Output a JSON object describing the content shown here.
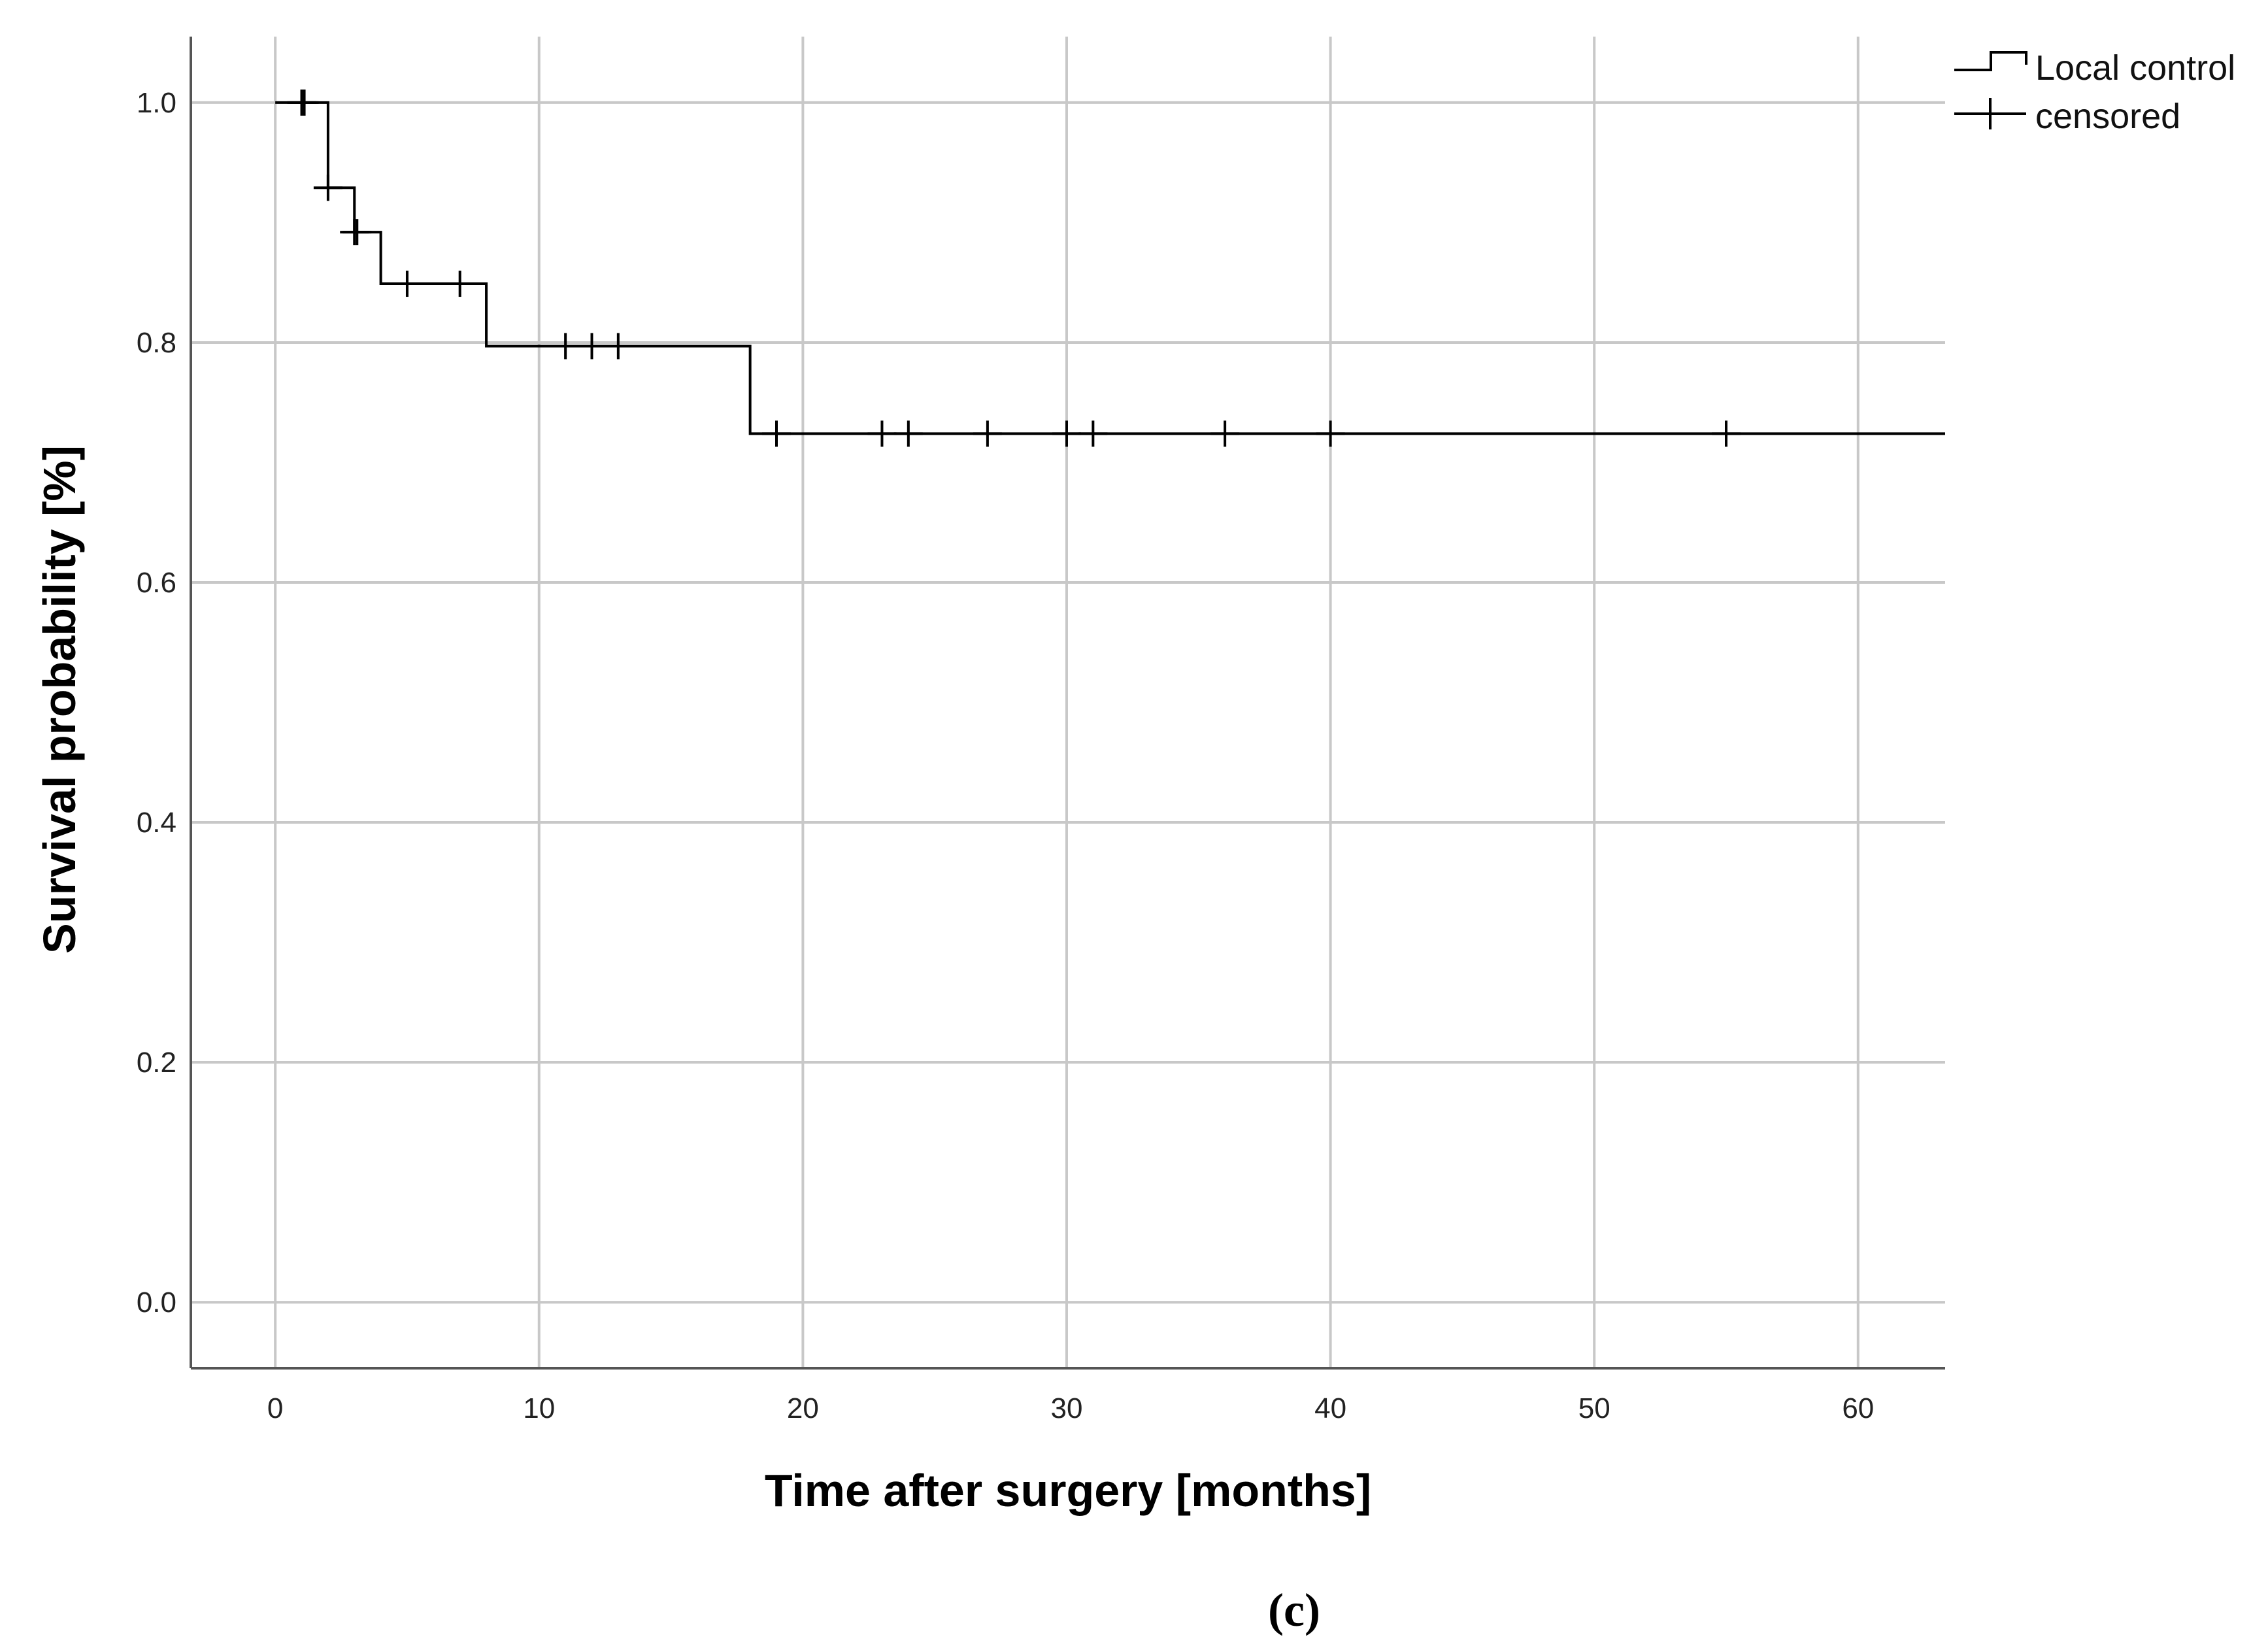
{
  "chart_data": {
    "type": "line",
    "subtype": "kaplan-meier-step",
    "xlabel": "Time after surgery [months]",
    "ylabel": "Survival probability [%]",
    "xlim": [
      -3.2,
      63.3
    ],
    "ylim": [
      -0.055,
      1.055
    ],
    "xticks": [
      0,
      10,
      20,
      30,
      40,
      50,
      60
    ],
    "yticks": [
      0.0,
      0.2,
      0.4,
      0.6,
      0.8,
      1.0
    ],
    "xtick_labels": [
      "0",
      "10",
      "20",
      "30",
      "40",
      "50",
      "60"
    ],
    "ytick_labels": [
      "0.0",
      "0.2",
      "0.4",
      "0.6",
      "0.8",
      "1.0"
    ],
    "grid": true,
    "legend_position": "top-right",
    "legend": [
      {
        "label": "Local control",
        "kind": "step-line"
      },
      {
        "label": "censored",
        "kind": "plus-marker"
      }
    ],
    "series": [
      {
        "name": "Local control",
        "color": "#000000",
        "steps": [
          {
            "x": 0,
            "y": 1.0
          },
          {
            "x": 2,
            "y": 0.929
          },
          {
            "x": 3,
            "y": 0.892
          },
          {
            "x": 4,
            "y": 0.849
          },
          {
            "x": 8,
            "y": 0.797
          },
          {
            "x": 18,
            "y": 0.724
          }
        ],
        "end_x": 63.3,
        "censored": [
          {
            "x": 1,
            "y": 1.0
          },
          {
            "x": 1.1,
            "y": 1.0
          },
          {
            "x": 2,
            "y": 0.929
          },
          {
            "x": 3,
            "y": 0.892
          },
          {
            "x": 3.1,
            "y": 0.892
          },
          {
            "x": 5,
            "y": 0.849
          },
          {
            "x": 7,
            "y": 0.849
          },
          {
            "x": 11,
            "y": 0.797
          },
          {
            "x": 12,
            "y": 0.797
          },
          {
            "x": 13,
            "y": 0.797
          },
          {
            "x": 19,
            "y": 0.724
          },
          {
            "x": 23,
            "y": 0.724
          },
          {
            "x": 24,
            "y": 0.724
          },
          {
            "x": 27,
            "y": 0.724
          },
          {
            "x": 30,
            "y": 0.724
          },
          {
            "x": 31,
            "y": 0.724
          },
          {
            "x": 36,
            "y": 0.724
          },
          {
            "x": 40,
            "y": 0.724
          },
          {
            "x": 55,
            "y": 0.724
          }
        ]
      }
    ]
  },
  "panel_label": "(c)",
  "colors": {
    "grid": "#c8c8c8",
    "axis": "#555555",
    "line": "#000000"
  }
}
